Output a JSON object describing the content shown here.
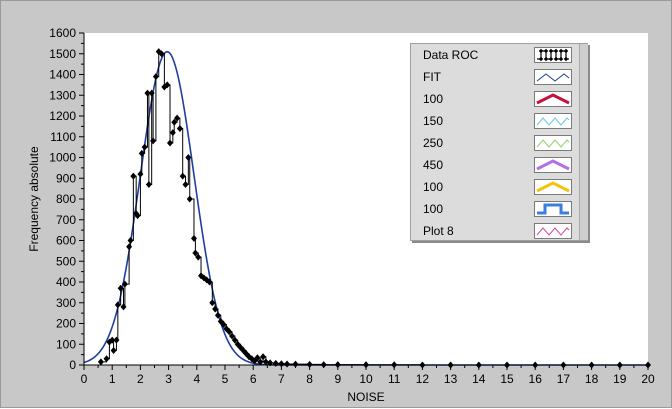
{
  "chart_data": {
    "type": "line",
    "xlabel": "NOISE",
    "ylabel": "Frequency absolute",
    "xlim": [
      0,
      20
    ],
    "ylim": [
      0,
      1600
    ],
    "x_ticks": [
      "0",
      "1",
      "2",
      "3",
      "4",
      "5",
      "6",
      "7",
      "8",
      "9",
      "10",
      "11",
      "12",
      "13",
      "14",
      "15",
      "16",
      "17",
      "18",
      "19",
      "20"
    ],
    "y_ticks": [
      "0",
      "100",
      "200",
      "300",
      "400",
      "500",
      "600",
      "700",
      "800",
      "900",
      "1000",
      "1100",
      "1200",
      "1300",
      "1400",
      "1500",
      "1600"
    ],
    "grid": false,
    "legend_position": "top-right",
    "series": [
      {
        "name": "Data ROC",
        "color": "#000000",
        "style": "step-markers",
        "points": [
          [
            0.6,
            15
          ],
          [
            0.8,
            30
          ],
          [
            0.9,
            110
          ],
          [
            1.0,
            120
          ],
          [
            1.05,
            70
          ],
          [
            1.15,
            120
          ],
          [
            1.2,
            290
          ],
          [
            1.3,
            370
          ],
          [
            1.4,
            280
          ],
          [
            1.45,
            390
          ],
          [
            1.6,
            570
          ],
          [
            1.65,
            600
          ],
          [
            1.75,
            910
          ],
          [
            1.85,
            730
          ],
          [
            1.9,
            720
          ],
          [
            2.0,
            920
          ],
          [
            2.05,
            1020
          ],
          [
            2.15,
            1050
          ],
          [
            2.25,
            1310
          ],
          [
            2.3,
            870
          ],
          [
            2.4,
            1310
          ],
          [
            2.45,
            1080
          ],
          [
            2.55,
            1390
          ],
          [
            2.65,
            1510
          ],
          [
            2.75,
            1500
          ],
          [
            2.85,
            1340
          ],
          [
            2.95,
            1350
          ],
          [
            3.05,
            1070
          ],
          [
            3.15,
            1120
          ],
          [
            3.2,
            1170
          ],
          [
            3.3,
            1190
          ],
          [
            3.4,
            1140
          ],
          [
            3.5,
            910
          ],
          [
            3.6,
            870
          ],
          [
            3.7,
            1000
          ],
          [
            3.75,
            800
          ],
          [
            3.9,
            610
          ],
          [
            3.95,
            540
          ],
          [
            4.05,
            520
          ],
          [
            4.15,
            430
          ],
          [
            4.25,
            420
          ],
          [
            4.35,
            410
          ],
          [
            4.45,
            400
          ],
          [
            4.55,
            300
          ],
          [
            4.65,
            270
          ],
          [
            4.75,
            240
          ],
          [
            4.85,
            210
          ],
          [
            4.95,
            195
          ],
          [
            5.05,
            175
          ],
          [
            5.15,
            160
          ],
          [
            5.25,
            140
          ],
          [
            5.35,
            120
          ],
          [
            5.45,
            100
          ],
          [
            5.55,
            85
          ],
          [
            5.65,
            70
          ],
          [
            5.75,
            55
          ],
          [
            5.85,
            40
          ],
          [
            5.95,
            30
          ],
          [
            6.05,
            20
          ],
          [
            6.15,
            35
          ],
          [
            6.25,
            15
          ],
          [
            6.35,
            40
          ],
          [
            6.45,
            15
          ],
          [
            6.6,
            10
          ],
          [
            6.8,
            8
          ],
          [
            7.0,
            6
          ],
          [
            7.2,
            5
          ],
          [
            7.5,
            4
          ],
          [
            8.0,
            3
          ],
          [
            8.5,
            2
          ],
          [
            9.0,
            2
          ],
          [
            10.0,
            1
          ],
          [
            11.0,
            1
          ],
          [
            12.0,
            0
          ],
          [
            13.0,
            0
          ],
          [
            14.0,
            0
          ],
          [
            15.0,
            0
          ],
          [
            16.0,
            0
          ],
          [
            17.0,
            0
          ],
          [
            18.0,
            0
          ],
          [
            19.0,
            0
          ],
          [
            20.0,
            0
          ]
        ]
      },
      {
        "name": "FIT",
        "color": "#1f3f9f",
        "style": "gaussian",
        "amplitude": 1510,
        "mean": 2.95,
        "sigma": 0.95
      },
      {
        "name": "100",
        "color": "#c0143c",
        "style": "legend-only"
      },
      {
        "name": "150",
        "color": "#6cc4e8",
        "style": "legend-only"
      },
      {
        "name": "250",
        "color": "#8fd16a",
        "style": "legend-only"
      },
      {
        "name": "450",
        "color": "#b46ee8",
        "style": "legend-only"
      },
      {
        "name": "100",
        "color": "#f4c20d",
        "style": "legend-only"
      },
      {
        "name": "100",
        "color": "#3a7ee0",
        "style": "legend-only"
      },
      {
        "name": "Plot 8",
        "color": "#d04aa0",
        "style": "legend-only"
      }
    ]
  }
}
